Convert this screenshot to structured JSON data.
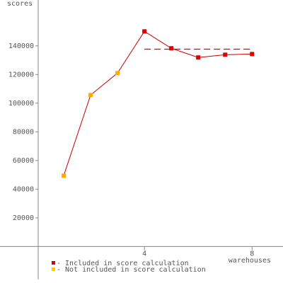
{
  "chart_data": {
    "type": "line",
    "y_label": "scores",
    "x_label": "warehouses",
    "x": [
      1,
      2,
      3,
      4,
      5,
      6,
      7,
      8
    ],
    "series": [
      {
        "name": "scores",
        "color": "#cc0000",
        "values": [
          49400,
          105700,
          121000,
          150100,
          138300,
          131900,
          133800,
          134300
        ],
        "point_colors": [
          "#ffaa00",
          "#ffaa00",
          "#ffaa00",
          "#dd0000",
          "#dd0000",
          "#dd0000",
          "#dd0000",
          "#dd0000"
        ]
      }
    ],
    "score": {
      "value": 137700,
      "x": [
        4,
        8
      ],
      "color": "#dd0000"
    },
    "legend": [
      {
        "label": "- Included in score calculation",
        "color": "#dd0000"
      },
      {
        "label": "- Not included in score calculation",
        "color": "#ffcc00"
      }
    ],
    "xlim": [
      0,
      9.15
    ],
    "ylim": [
      -23000,
      172000
    ],
    "xticks": [
      4,
      8
    ],
    "yticks": [
      20000,
      40000,
      60000,
      80000,
      100000,
      120000,
      140000
    ]
  }
}
